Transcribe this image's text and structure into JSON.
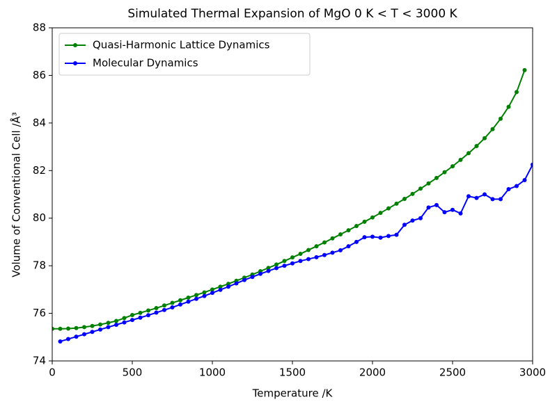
{
  "chart_data": {
    "type": "line",
    "title": "Simulated Thermal Expansion of MgO 0 K < T < 3000 K",
    "x_label": "Temperature /K",
    "y_label": "Volume of Conventional Cell /Å³",
    "xlim": [
      0,
      3000
    ],
    "xticks": [
      0,
      500,
      1000,
      1500,
      2000,
      2500,
      3000
    ],
    "ylim": [
      74,
      88
    ],
    "yticks": [
      74,
      76,
      78,
      80,
      82,
      84,
      86,
      88
    ],
    "legend": "upper left",
    "grid": false,
    "series": [
      {
        "name": "Quasi-Harmonic Lattice Dynamics",
        "color": "#008000",
        "x": [
          0,
          50,
          100,
          150,
          200,
          250,
          300,
          350,
          400,
          450,
          500,
          550,
          600,
          650,
          700,
          750,
          800,
          850,
          900,
          950,
          1000,
          1050,
          1100,
          1150,
          1200,
          1250,
          1300,
          1350,
          1400,
          1450,
          1500,
          1550,
          1600,
          1650,
          1700,
          1750,
          1800,
          1850,
          1900,
          1950,
          2000,
          2050,
          2100,
          2150,
          2200,
          2250,
          2300,
          2350,
          2400,
          2450,
          2500,
          2550,
          2600,
          2650,
          2700,
          2750,
          2800,
          2850,
          2900,
          2950
        ],
        "values": [
          75.35,
          75.35,
          75.36,
          75.38,
          75.42,
          75.47,
          75.53,
          75.6,
          75.68,
          75.8,
          75.93,
          76.02,
          76.12,
          76.22,
          76.33,
          76.44,
          76.55,
          76.66,
          76.77,
          76.88,
          77.0,
          77.12,
          77.24,
          77.37,
          77.5,
          77.63,
          77.77,
          77.91,
          78.05,
          78.2,
          78.35,
          78.5,
          78.66,
          78.82,
          78.98,
          79.15,
          79.32,
          79.49,
          79.67,
          79.85,
          80.03,
          80.22,
          80.41,
          80.61,
          80.81,
          81.02,
          81.24,
          81.46,
          81.69,
          81.93,
          82.18,
          82.45,
          82.73,
          83.03,
          83.36,
          83.74,
          84.18,
          84.68,
          85.3,
          86.22
        ]
      },
      {
        "name": "Molecular Dynamics",
        "color": "#0000ff",
        "x": [
          50,
          100,
          150,
          200,
          250,
          300,
          350,
          400,
          450,
          500,
          550,
          600,
          650,
          700,
          750,
          800,
          850,
          900,
          950,
          1000,
          1050,
          1100,
          1150,
          1200,
          1250,
          1300,
          1350,
          1400,
          1450,
          1500,
          1550,
          1600,
          1650,
          1700,
          1750,
          1800,
          1850,
          1900,
          1950,
          2000,
          2050,
          2100,
          2150,
          2200,
          2250,
          2300,
          2350,
          2400,
          2450,
          2500,
          2550,
          2600,
          2650,
          2700,
          2750,
          2800,
          2850,
          2900,
          2950,
          3000
        ],
        "values": [
          74.82,
          74.92,
          75.02,
          75.12,
          75.22,
          75.32,
          75.42,
          75.52,
          75.62,
          75.72,
          75.82,
          75.92,
          76.03,
          76.14,
          76.25,
          76.37,
          76.49,
          76.61,
          76.73,
          76.86,
          76.99,
          77.12,
          77.26,
          77.4,
          77.53,
          77.66,
          77.78,
          77.9,
          78.0,
          78.1,
          78.2,
          78.28,
          78.36,
          78.45,
          78.55,
          78.65,
          78.82,
          79.0,
          79.2,
          79.22,
          79.18,
          79.25,
          79.3,
          79.72,
          79.9,
          80.0,
          80.45,
          80.55,
          80.25,
          80.35,
          80.2,
          80.92,
          80.85,
          81.0,
          80.8,
          80.8,
          81.22,
          81.35,
          81.6,
          82.25
        ]
      }
    ]
  }
}
